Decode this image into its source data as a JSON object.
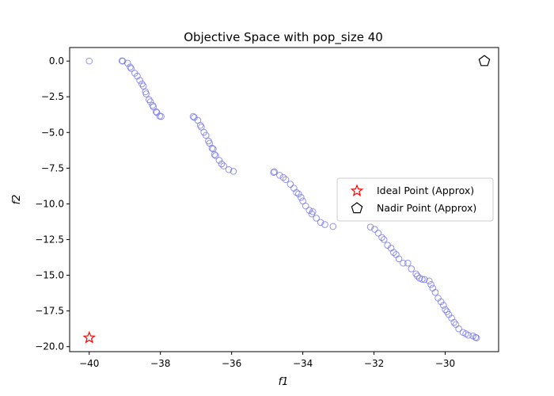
{
  "chart_data": {
    "type": "scatter",
    "title": "Objective Space with pop_size 40",
    "xlabel": "f1",
    "ylabel": "f2",
    "xlim": [
      -40.55,
      -28.5
    ],
    "ylim": [
      -20.35,
      0.95
    ],
    "xticks": [
      -40,
      -38,
      -36,
      -34,
      -32,
      -30
    ],
    "yticks": [
      0.0,
      -2.5,
      -5.0,
      -7.5,
      -10.0,
      -12.5,
      -15.0,
      -17.5,
      -20.0
    ],
    "xtick_labels": [
      "−40",
      "−38",
      "−36",
      "−34",
      "−32",
      "−30"
    ],
    "ytick_labels": [
      "0.0",
      "−2.5",
      "−5.0",
      "−7.5",
      "−10.0",
      "−12.5",
      "−15.0",
      "−17.5",
      "−20.0"
    ],
    "grid": false,
    "legend_position": "center-right",
    "series": [
      {
        "color": "#6f6fe8",
        "marker": "open-circle",
        "points": [
          [
            -40.0,
            0.0
          ],
          [
            -39.08,
            0.02
          ],
          [
            -39.06,
            0.0
          ],
          [
            -38.92,
            -0.15
          ],
          [
            -38.85,
            -0.42
          ],
          [
            -38.82,
            -0.52
          ],
          [
            -38.72,
            -0.85
          ],
          [
            -38.65,
            -1.05
          ],
          [
            -38.58,
            -1.35
          ],
          [
            -38.52,
            -1.6
          ],
          [
            -38.48,
            -1.75
          ],
          [
            -38.42,
            -2.15
          ],
          [
            -38.4,
            -2.3
          ],
          [
            -38.32,
            -2.7
          ],
          [
            -38.28,
            -2.85
          ],
          [
            -38.22,
            -3.1
          ],
          [
            -38.2,
            -3.2
          ],
          [
            -38.12,
            -3.55
          ],
          [
            -38.1,
            -3.6
          ],
          [
            -38.02,
            -3.85
          ],
          [
            -37.98,
            -3.88
          ],
          [
            -37.08,
            -3.88
          ],
          [
            -37.05,
            -3.95
          ],
          [
            -36.95,
            -4.15
          ],
          [
            -36.88,
            -4.5
          ],
          [
            -36.85,
            -4.62
          ],
          [
            -36.78,
            -4.98
          ],
          [
            -36.72,
            -5.2
          ],
          [
            -36.65,
            -5.6
          ],
          [
            -36.62,
            -5.75
          ],
          [
            -36.55,
            -6.1
          ],
          [
            -36.52,
            -6.15
          ],
          [
            -36.48,
            -6.55
          ],
          [
            -36.45,
            -6.62
          ],
          [
            -36.35,
            -6.95
          ],
          [
            -36.28,
            -7.2
          ],
          [
            -36.22,
            -7.35
          ],
          [
            -36.08,
            -7.6
          ],
          [
            -35.95,
            -7.72
          ],
          [
            -34.82,
            -7.8
          ],
          [
            -34.8,
            -7.75
          ],
          [
            -34.65,
            -8.0
          ],
          [
            -34.55,
            -8.15
          ],
          [
            -34.48,
            -8.3
          ],
          [
            -34.35,
            -8.62
          ],
          [
            -34.25,
            -8.9
          ],
          [
            -34.18,
            -9.2
          ],
          [
            -34.12,
            -9.3
          ],
          [
            -34.05,
            -9.55
          ],
          [
            -34.0,
            -9.8
          ],
          [
            -33.92,
            -10.15
          ],
          [
            -33.82,
            -10.45
          ],
          [
            -33.75,
            -10.7
          ],
          [
            -33.72,
            -10.55
          ],
          [
            -33.62,
            -11.0
          ],
          [
            -33.5,
            -11.3
          ],
          [
            -33.38,
            -11.45
          ],
          [
            -33.15,
            -11.58
          ],
          [
            -32.1,
            -11.62
          ],
          [
            -31.98,
            -11.78
          ],
          [
            -31.88,
            -12.05
          ],
          [
            -31.78,
            -12.35
          ],
          [
            -31.72,
            -12.5
          ],
          [
            -31.62,
            -12.9
          ],
          [
            -31.52,
            -13.1
          ],
          [
            -31.45,
            -13.4
          ],
          [
            -31.38,
            -13.55
          ],
          [
            -31.3,
            -13.85
          ],
          [
            -31.18,
            -14.15
          ],
          [
            -31.05,
            -14.15
          ],
          [
            -30.95,
            -14.55
          ],
          [
            -30.82,
            -14.9
          ],
          [
            -30.78,
            -15.05
          ],
          [
            -30.72,
            -15.2
          ],
          [
            -30.65,
            -15.28
          ],
          [
            -30.58,
            -15.3
          ],
          [
            -30.45,
            -15.4
          ],
          [
            -30.4,
            -15.65
          ],
          [
            -30.35,
            -15.9
          ],
          [
            -30.28,
            -16.2
          ],
          [
            -30.2,
            -16.6
          ],
          [
            -30.12,
            -16.85
          ],
          [
            -30.05,
            -17.1
          ],
          [
            -30.0,
            -17.4
          ],
          [
            -29.95,
            -17.55
          ],
          [
            -29.9,
            -17.75
          ],
          [
            -29.82,
            -18.0
          ],
          [
            -29.75,
            -18.3
          ],
          [
            -29.7,
            -18.45
          ],
          [
            -29.62,
            -18.75
          ],
          [
            -29.5,
            -19.0
          ],
          [
            -29.42,
            -19.1
          ],
          [
            -29.35,
            -19.2
          ],
          [
            -29.22,
            -19.25
          ],
          [
            -29.15,
            -19.35
          ],
          [
            -29.12,
            -19.38
          ]
        ]
      },
      {
        "name": "Ideal Point (Approx)",
        "color": "#ff0000",
        "marker": "star",
        "points": [
          [
            -40.0,
            -19.38
          ]
        ]
      },
      {
        "name": "Nadir Point (Approx)",
        "color": "#000000",
        "marker": "pentagon",
        "points": [
          [
            -28.9,
            0.0
          ]
        ]
      }
    ]
  }
}
